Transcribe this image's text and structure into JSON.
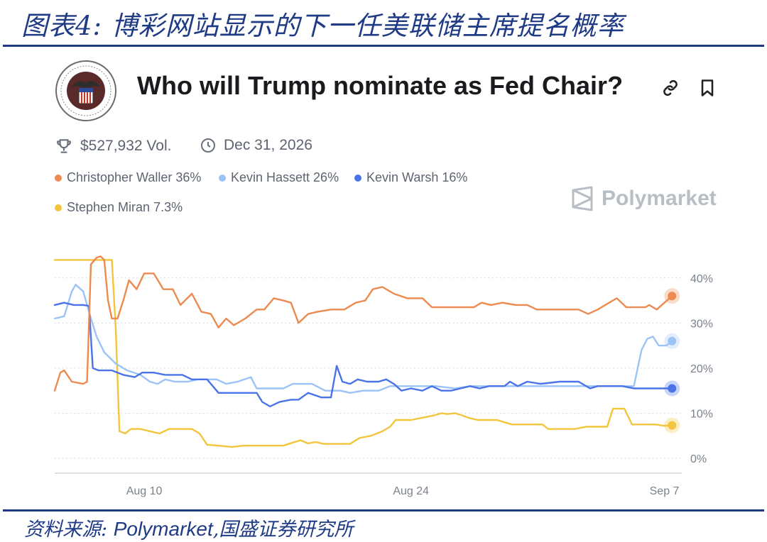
{
  "figure": {
    "title": "图表4:  博彩网站显示的下一任美联储主席提名概率",
    "source_label": "资料来源:",
    "source_brand": "Polymarket",
    "source_rest": ",国盛证券研究所"
  },
  "market": {
    "question": "Who will Trump nominate as Fed Chair?",
    "volume": "$527,932 Vol.",
    "end_date": "Dec 31, 2026",
    "watermark": "Polymarket",
    "icons": [
      "trophy-icon",
      "clock-icon",
      "link-icon",
      "bookmark-icon",
      "fed-seal-logo",
      "polymarket-logo"
    ]
  },
  "legend": [
    {
      "label": "Christopher Waller 36%",
      "color": "#ec8a4f"
    },
    {
      "label": "Kevin Hassett 26%",
      "color": "#9cc3f5"
    },
    {
      "label": "Kevin Warsh 16%",
      "color": "#4a73e8"
    },
    {
      "label": "Stephen Miran 7.3%",
      "color": "#f2c53d"
    }
  ],
  "chart_data": {
    "type": "line",
    "x_ticks": [
      {
        "t": 4.7,
        "label": "Aug 10"
      },
      {
        "t": 18.7,
        "label": "Aug 24"
      },
      {
        "t": 32.0,
        "label": "Sep 7"
      }
    ],
    "y_ticks": [
      {
        "v": 0,
        "label": "0%"
      },
      {
        "v": 10,
        "label": "10%"
      },
      {
        "v": 20,
        "label": "20%"
      },
      {
        "v": 30,
        "label": "30%"
      },
      {
        "v": 40,
        "label": "40%"
      }
    ],
    "xlim": [
      0,
      32.8
    ],
    "ylim": [
      0,
      45
    ],
    "grid": "horizontal-dotted",
    "series": [
      {
        "name": "Christopher Waller",
        "color": "#ec8a4f",
        "points": [
          [
            0,
            15
          ],
          [
            0.3,
            19
          ],
          [
            0.5,
            19.5
          ],
          [
            0.9,
            17
          ],
          [
            1.5,
            16.5
          ],
          [
            1.7,
            17
          ],
          [
            1.9,
            43
          ],
          [
            2.2,
            44.5
          ],
          [
            2.4,
            44.8
          ],
          [
            2.6,
            44
          ],
          [
            2.8,
            35
          ],
          [
            3,
            31
          ],
          [
            3.3,
            31
          ],
          [
            3.6,
            35
          ],
          [
            3.9,
            39.5
          ],
          [
            4.3,
            37.5
          ],
          [
            4.7,
            41
          ],
          [
            5.2,
            41
          ],
          [
            5.7,
            37.5
          ],
          [
            6.2,
            37.5
          ],
          [
            6.6,
            34
          ],
          [
            7.2,
            36.5
          ],
          [
            7.7,
            32.5
          ],
          [
            8.2,
            32
          ],
          [
            8.6,
            29
          ],
          [
            9.0,
            31
          ],
          [
            9.4,
            29.5
          ],
          [
            10,
            31
          ],
          [
            10.6,
            33
          ],
          [
            11,
            33
          ],
          [
            11.5,
            35.5
          ],
          [
            12,
            35
          ],
          [
            12.4,
            34.5
          ],
          [
            12.8,
            30
          ],
          [
            13.3,
            32
          ],
          [
            13.8,
            32.5
          ],
          [
            14.5,
            33
          ],
          [
            15.2,
            33
          ],
          [
            15.8,
            34.5
          ],
          [
            16.3,
            35
          ],
          [
            16.7,
            37.5
          ],
          [
            17.2,
            38
          ],
          [
            17.8,
            36.5
          ],
          [
            18.5,
            35.5
          ],
          [
            19.3,
            35.5
          ],
          [
            19.8,
            33.5
          ],
          [
            20.5,
            33.5
          ],
          [
            21.3,
            33.5
          ],
          [
            22,
            33.5
          ],
          [
            22.4,
            34.5
          ],
          [
            22.9,
            34
          ],
          [
            23.5,
            34.5
          ],
          [
            24.2,
            34
          ],
          [
            24.8,
            34
          ],
          [
            25.3,
            33
          ],
          [
            26,
            33
          ],
          [
            26.8,
            33
          ],
          [
            27.5,
            33
          ],
          [
            28,
            32
          ],
          [
            28.5,
            33
          ],
          [
            29.1,
            34.5
          ],
          [
            29.5,
            35.5
          ],
          [
            30,
            33.5
          ],
          [
            30.5,
            33.5
          ],
          [
            31,
            33.5
          ],
          [
            31.2,
            34
          ],
          [
            31.6,
            33
          ],
          [
            32,
            34.5
          ],
          [
            32.4,
            36
          ]
        ]
      },
      {
        "name": "Kevin Hassett",
        "color": "#9cc3f5",
        "points": [
          [
            0,
            31
          ],
          [
            0.5,
            31.5
          ],
          [
            0.9,
            37
          ],
          [
            1.1,
            38.5
          ],
          [
            1.5,
            37
          ],
          [
            1.9,
            31
          ],
          [
            2.2,
            27
          ],
          [
            2.6,
            23.5
          ],
          [
            3.2,
            21
          ],
          [
            3.8,
            19.5
          ],
          [
            4.5,
            18.5
          ],
          [
            5,
            17
          ],
          [
            5.4,
            16.5
          ],
          [
            5.8,
            17.5
          ],
          [
            6.3,
            17
          ],
          [
            7,
            17
          ],
          [
            7.5,
            17.5
          ],
          [
            8.5,
            17.5
          ],
          [
            9.0,
            16.5
          ],
          [
            9.6,
            17
          ],
          [
            10.3,
            18
          ],
          [
            10.6,
            15.5
          ],
          [
            11.3,
            15.5
          ],
          [
            12,
            15.5
          ],
          [
            12.5,
            16.5
          ],
          [
            13.5,
            16.5
          ],
          [
            14.2,
            15
          ],
          [
            15,
            15
          ],
          [
            15.5,
            14.5
          ],
          [
            16.2,
            15
          ],
          [
            17,
            15
          ],
          [
            17.6,
            16
          ],
          [
            18.5,
            16
          ],
          [
            19.2,
            16
          ],
          [
            20,
            16
          ],
          [
            21,
            15.5
          ],
          [
            21.8,
            16
          ],
          [
            22.5,
            16
          ],
          [
            23.5,
            16
          ],
          [
            24.5,
            16
          ],
          [
            25.5,
            16
          ],
          [
            26.5,
            16
          ],
          [
            27.5,
            16
          ],
          [
            28.5,
            16
          ],
          [
            29.2,
            16
          ],
          [
            30,
            16
          ],
          [
            30.4,
            16
          ],
          [
            30.8,
            24
          ],
          [
            31.1,
            26.5
          ],
          [
            31.4,
            27
          ],
          [
            31.7,
            25
          ],
          [
            32.1,
            25
          ],
          [
            32.4,
            26
          ]
        ]
      },
      {
        "name": "Kevin Warsh",
        "color": "#4a73e8",
        "points": [
          [
            0,
            34
          ],
          [
            0.5,
            34.5
          ],
          [
            1,
            34
          ],
          [
            1.5,
            34
          ],
          [
            1.8,
            33.8
          ],
          [
            2,
            20
          ],
          [
            2.3,
            19.5
          ],
          [
            2.6,
            19.5
          ],
          [
            3,
            19.5
          ],
          [
            3.6,
            18.5
          ],
          [
            4.2,
            18
          ],
          [
            4.6,
            19
          ],
          [
            5.2,
            19
          ],
          [
            5.8,
            18.5
          ],
          [
            6.7,
            18.5
          ],
          [
            7.2,
            17.5
          ],
          [
            8,
            17.5
          ],
          [
            8.6,
            14.5
          ],
          [
            9.5,
            14.5
          ],
          [
            10.2,
            14.5
          ],
          [
            10.6,
            14.5
          ],
          [
            10.9,
            12.5
          ],
          [
            11.3,
            11.5
          ],
          [
            11.8,
            12.5
          ],
          [
            12.4,
            13
          ],
          [
            12.8,
            13
          ],
          [
            13.3,
            14.5
          ],
          [
            14,
            13.5
          ],
          [
            14.5,
            13.5
          ],
          [
            14.8,
            20.5
          ],
          [
            15.1,
            17
          ],
          [
            15.5,
            16.5
          ],
          [
            15.9,
            17.5
          ],
          [
            16.4,
            17
          ],
          [
            17,
            17
          ],
          [
            17.4,
            17.5
          ],
          [
            17.8,
            16.5
          ],
          [
            18.2,
            15
          ],
          [
            18.7,
            15.5
          ],
          [
            19.3,
            15
          ],
          [
            19.8,
            16
          ],
          [
            20.3,
            15
          ],
          [
            20.8,
            15
          ],
          [
            21.3,
            15.5
          ],
          [
            21.8,
            16
          ],
          [
            22.3,
            15.5
          ],
          [
            22.8,
            16
          ],
          [
            23.2,
            16
          ],
          [
            23.6,
            16
          ],
          [
            23.9,
            17
          ],
          [
            24.3,
            16
          ],
          [
            24.8,
            17
          ],
          [
            25.5,
            16.5
          ],
          [
            26.5,
            17
          ],
          [
            27.5,
            17
          ],
          [
            28.1,
            15.5
          ],
          [
            28.5,
            16
          ],
          [
            29,
            16
          ],
          [
            29.8,
            16
          ],
          [
            30.4,
            15.5
          ],
          [
            31,
            15.5
          ],
          [
            31.6,
            15.5
          ],
          [
            32.4,
            15.5
          ]
        ]
      },
      {
        "name": "Stephen Miran",
        "color": "#f2c53d",
        "points": [
          [
            0,
            44
          ],
          [
            1.2,
            44
          ],
          [
            2,
            44
          ],
          [
            2.6,
            44
          ],
          [
            3,
            44
          ],
          [
            3.2,
            29
          ],
          [
            3.4,
            6
          ],
          [
            3.7,
            5.5
          ],
          [
            4,
            6.5
          ],
          [
            4.5,
            6.5
          ],
          [
            5,
            6
          ],
          [
            5.5,
            5.5
          ],
          [
            6,
            6.5
          ],
          [
            6.8,
            6.5
          ],
          [
            7.2,
            6.5
          ],
          [
            7.6,
            5.5
          ],
          [
            8,
            3
          ],
          [
            8.6,
            2.8
          ],
          [
            9.3,
            2.5
          ],
          [
            9.9,
            2.8
          ],
          [
            10.6,
            2.8
          ],
          [
            11.3,
            2.8
          ],
          [
            12,
            2.8
          ],
          [
            12.5,
            3.5
          ],
          [
            12.9,
            4
          ],
          [
            13.3,
            3.3
          ],
          [
            13.7,
            3.6
          ],
          [
            14.1,
            3.2
          ],
          [
            14.8,
            3.2
          ],
          [
            15.5,
            3.2
          ],
          [
            16,
            4.5
          ],
          [
            16.6,
            5
          ],
          [
            17.2,
            6
          ],
          [
            17.6,
            7
          ],
          [
            17.9,
            8.5
          ],
          [
            18.3,
            8.5
          ],
          [
            18.7,
            8.5
          ],
          [
            19.3,
            9
          ],
          [
            19.9,
            9.5
          ],
          [
            20.3,
            10
          ],
          [
            20.6,
            9.8
          ],
          [
            21,
            10
          ],
          [
            21.4,
            9.5
          ],
          [
            21.7,
            9
          ],
          [
            22.2,
            8.5
          ],
          [
            22.6,
            8.5
          ],
          [
            23.2,
            8.5
          ],
          [
            23.6,
            8
          ],
          [
            24,
            7.5
          ],
          [
            24.7,
            7.5
          ],
          [
            25.2,
            7.5
          ],
          [
            25.6,
            7.5
          ],
          [
            25.9,
            6.5
          ],
          [
            26.3,
            6.5
          ],
          [
            26.7,
            6.5
          ],
          [
            27.3,
            6.5
          ],
          [
            27.9,
            7
          ],
          [
            28.6,
            7
          ],
          [
            29,
            7
          ],
          [
            29.3,
            11
          ],
          [
            29.6,
            11
          ],
          [
            29.9,
            11
          ],
          [
            30.3,
            7.5
          ],
          [
            30.7,
            7.5
          ],
          [
            31.1,
            7.5
          ],
          [
            31.5,
            7.5
          ],
          [
            32,
            7.2
          ],
          [
            32.4,
            7.3
          ]
        ]
      }
    ]
  }
}
